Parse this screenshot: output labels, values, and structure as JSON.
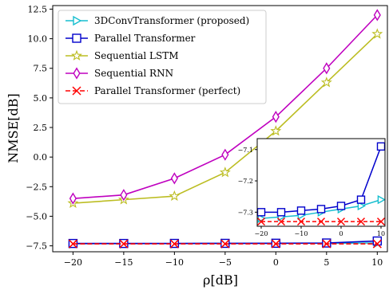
{
  "chart_data": [
    {
      "type": "line",
      "xlabel": "ρ[dB]",
      "ylabel": "NMSE[dB]",
      "xlim": [
        -22,
        11
      ],
      "ylim": [
        -8.0,
        12.8
      ],
      "grid": false,
      "legend_position": "top-left",
      "x": [
        -20,
        -15,
        -10,
        -5,
        0,
        5,
        10
      ],
      "xticks": [
        -20,
        -15,
        -10,
        -5,
        0,
        5,
        10
      ],
      "yticks": [
        -7.5,
        -5.0,
        -2.5,
        0.0,
        2.5,
        5.0,
        7.5,
        10.0,
        12.5
      ],
      "xtick_labels": [
        "−20",
        "−15",
        "−10",
        "−5",
        "0",
        "5",
        "10"
      ],
      "ytick_labels": [
        "−7.5",
        "−5.0",
        "−2.5",
        "0.0",
        "2.5",
        "5.0",
        "7.5",
        "10.0",
        "12.5"
      ],
      "series": [
        {
          "name": "3DConvTransformer (proposed)",
          "color": "#17becf",
          "dash": "solid",
          "marker": "triangle-right",
          "values": [
            -7.32,
            -7.315,
            -7.31,
            -7.3,
            -7.29,
            -7.28,
            -7.26
          ]
        },
        {
          "name": "Parallel Transformer",
          "color": "#0000cc",
          "dash": "solid",
          "marker": "square",
          "values": [
            -7.3,
            -7.3,
            -7.295,
            -7.29,
            -7.28,
            -7.26,
            -7.09
          ]
        },
        {
          "name": "Sequential LSTM",
          "color": "#bcbd22",
          "dash": "solid",
          "marker": "star",
          "values": [
            -3.9,
            -3.6,
            -3.3,
            -1.3,
            2.2,
            6.3,
            10.4
          ]
        },
        {
          "name": "Sequential RNN",
          "color": "#bf00bf",
          "dash": "solid",
          "marker": "thin-diamond",
          "values": [
            -3.5,
            -3.2,
            -1.8,
            0.2,
            3.4,
            7.5,
            12.0
          ]
        },
        {
          "name": "Parallel Transformer (perfect)",
          "color": "#ff0000",
          "dash": "dashed",
          "marker": "x",
          "values": [
            -7.33,
            -7.33,
            -7.33,
            -7.33,
            -7.33,
            -7.33,
            -7.33
          ]
        }
      ]
    },
    {
      "type": "line",
      "role": "inset zoom",
      "xlim": [
        -21,
        11
      ],
      "ylim": [
        -7.345,
        -7.065
      ],
      "xticks": [
        -20,
        -10,
        0,
        10
      ],
      "yticks": [
        -7.3,
        -7.2,
        -7.1
      ],
      "xtick_labels": [
        "−20",
        "−10",
        "0",
        "10"
      ],
      "ytick_labels": [
        "−7.3",
        "−7.2",
        "−7.1"
      ],
      "x": [
        -20,
        -15,
        -10,
        -5,
        0,
        5,
        10
      ],
      "series": [
        {
          "color": "#17becf",
          "dash": "solid",
          "marker": "triangle-right",
          "values": [
            -7.32,
            -7.315,
            -7.31,
            -7.3,
            -7.29,
            -7.28,
            -7.26
          ]
        },
        {
          "color": "#0000cc",
          "dash": "solid",
          "marker": "square",
          "values": [
            -7.3,
            -7.3,
            -7.295,
            -7.29,
            -7.28,
            -7.26,
            -7.09
          ]
        },
        {
          "color": "#ff0000",
          "dash": "dashed",
          "marker": "x",
          "values": [
            -7.33,
            -7.33,
            -7.33,
            -7.33,
            -7.33,
            -7.33,
            -7.33
          ]
        }
      ]
    }
  ]
}
